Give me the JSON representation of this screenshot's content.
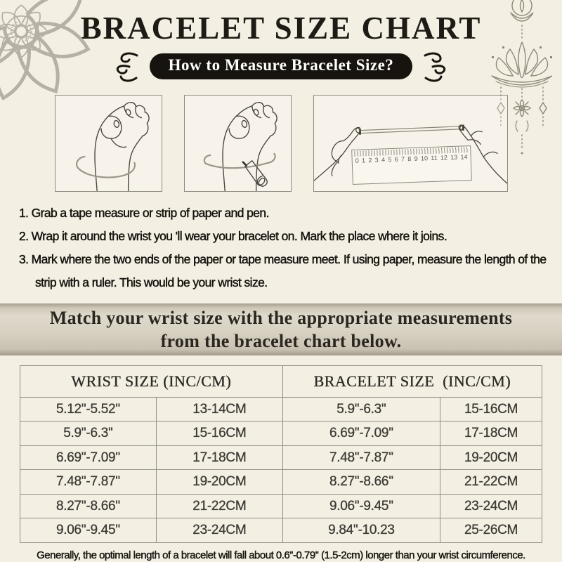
{
  "header": {
    "title": "BRACELET SIZE CHART",
    "badge": "How to Measure Bracelet Size?"
  },
  "steps": [
    {
      "text": "1. Grab a tape measure or strip of paper and pen."
    },
    {
      "text": "2. Wrap it around the wrist you 'll wear your bracelet on. Mark the place where it joins."
    },
    {
      "text": "3. Mark where the two ends of the paper or tape measure meet. If using paper, measure the length of the strip with a ruler. This would be your wrist size."
    }
  ],
  "banner": {
    "line1": "Match your wrist size with the appropriate measurements",
    "line2": "from the bracelet chart below."
  },
  "size_table": {
    "col_headers": [
      "WRIST SIZE (INC/CM)",
      "BRACELET SIZE  (INC/CM)"
    ],
    "rows": [
      [
        "5.12''-5.52''",
        "13-14CM",
        "5.9''-6.3''",
        "15-16CM"
      ],
      [
        "5.9''-6.3''",
        "15-16CM",
        "6.69''-7.09''",
        "17-18CM"
      ],
      [
        "6.69''-7.09''",
        "17-18CM",
        "7.48''-7.87''",
        "19-20CM"
      ],
      [
        "7.48''-7.87''",
        "19-20CM",
        "8.27''-8.66''",
        "21-22CM"
      ],
      [
        "8.27''-8.66''",
        "21-22CM",
        "9.06''-9.45''",
        "23-24CM"
      ],
      [
        "9.06''-9.45''",
        "23-24CM",
        "9.84''-10.23",
        "25-26CM"
      ]
    ]
  },
  "footer": {
    "note": "Generally, the optimal length of a bracelet will fall about 0.6''-0.79'' (1.5-2cm) longer than your wrist circumference."
  },
  "illustration": {
    "ruler_numbers": [
      "0",
      "1",
      "2",
      "3",
      "4",
      "5",
      "6",
      "7",
      "8",
      "9",
      "10",
      "11",
      "12",
      "13",
      "14"
    ]
  },
  "colors": {
    "background": "#f4efe3",
    "ink": "#1c1a16",
    "badge_bg": "#17140f",
    "badge_text": "#ffffff",
    "banner_bg": "#d6d0c1",
    "table_border": "#918e85",
    "decor_gray": "#b5b1a6",
    "line_art": "#4a4740"
  }
}
